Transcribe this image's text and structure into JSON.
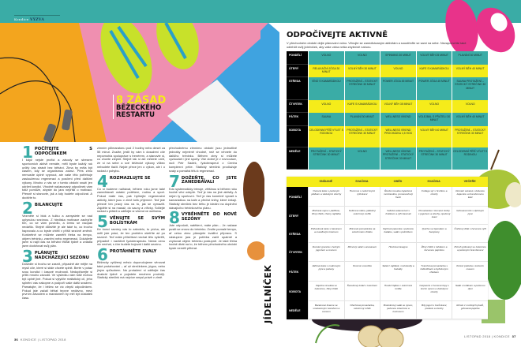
{
  "left_page": {
    "section_label": "Kondice",
    "section_title": "VÝZVA",
    "headline_highlight": "8 ZÁSAD",
    "headline_line2": "BĚŽECKÉHO",
    "headline_line3": "RESTARTU",
    "folio_number": "36",
    "folio_text": "KONDICE | LISTOPAD 2018",
    "articles": [
      {
        "num": "1",
        "title": "POČÍTEJTE S ODPOČINKEM",
        "body": "I když nejste profíci a závody se stresem sportovních aktivit nemáte, měli byste každý rok určitý čas strávit bez běhání. Zima by měla být časem, kdy se organismus zotaví. Přes zimu nemusíte úplně vypnout, ale vaše tělo potřebuje zaslouženou regeneraci a posílení před dalšími výkony. Mnoho z nás se v tomto období snaží jen udržet kondici. Vhodně načasovaný odpočinek vám totiž pomůže, abyste do jara nepřišli o motivaci. Přesně si stanovte, jak a kdy budete odpočívat. A dodržte to."
      },
      {
        "num": "2",
        "title": "BILANCUJTE",
        "body": "Vezměte si blok a tužku a zamyslete se nad uplynulou sezónou. Z hlediska motivace zachyťte tím, co se vám povedlo, a čemu se naopak nedařilo. Stejně důležité je ale také to, co trochu haprovalo a co byste chtěli v příští sezóně změnit. Konkrétně se můžete zaměřit třeba na tempo, objem tréninku, zranění nebo regeneraci. Dokážete jsem si najít čas na běhání třikrát týdně a zvládla jsem dodržovat svůj plán."
      },
      {
        "num": "3",
        "title": "PLÁNUJTE NADCHÁZEJÍCÍ SEZÓNU",
        "body": "Dosedte si trochu se zasnít, případně ale mějte na mysli cíle, které si stále chcete splnit. Berte v potaz svou kondici i časové možnosti. Nedopřávejte si příliš mnoho závodů. Ve výsledku vám totiž mohou být úplně jiné. Pokud si vytyčíte realistický cíl, jeho splnění vás nakopne a podpoří vaše další snažení. Pamatujte, že i běžec se víc zlepší odpočinkem. Pokud jste začali běhat teprve nedávno, mezi prvním závodem a maratonem by měl být dostatek času."
      },
      {
        "num": "4",
        "title": "ROZMAZLUJTE SE",
        "body": "Co si budeme nalhávat, během roku jsme také zanedbávali ostatní potěšení, rodinu a sport. Pokud máte čas, pak hýčkejte regenerační aktivity, které jsou v zimě tolik příjemné. Teď jste přesně ten pravý čas na to, jak se vymazlit. Zajděte si na masáž, do sauny a vířivky. Sdílejte radost s přáteli a udělejte si víkend ve wellness."
      },
      {
        "num": "5",
        "title": "VĚNUJTE SE SVÝM BOLÍSTKÁM",
        "body": "Ke konci sezóny vás to zabolelo, to pícha, ale měli jste práci, že ten problém ošetříte až po sezóně. Teď máte příležitost nechat tělo vyšetřit, případně i navštívit fyzioterapeuta. Nemá cenu nic nechat, s čím budete bojovat i další sezónu."
      },
      {
        "num": "6",
        "title": "PROTÁHNĚTE SVALY",
        "body": "Běžecky vytížený měsíc doporučujeme věnovat také protahování – ať už strečinkem, jógou, nebo jiným způsobem. Na protažení si udělejte čas dvakrát týdně a pojedete mnohem pružněji. Statický strečink má nejvíce smysl právě v zimě."
      },
      {
        "num": "7",
        "title": "DOŽEŇTE, CO JSTE ZANEDBÁVALI",
        "body": "Kdo systematicky trénuje, většinou si během roku hodně věcí odepře. Teď je čas na jiné aktivity. A nejen ty sportovní. Teď je čas konečně vyrazit s kamarádkou na kafe a přečíst knihy, které čekají. Statický strečink bez běhu je ideální na doplnění stávajícího tréninkového plánu."
      },
      {
        "num": "8",
        "title": "VYBĚHNĚTE DO NOVÉ SEZÓNY",
        "body": "Jste odpočatí, natěšení, máte plán... Je načase pustit se znovu do tréninku. Zvolte pomalé tempo, ať celou zimu plánujete kvalitní přípravu. S nástupem jara je potřeba začít opatrně a zvyšovat objem tréninku postupně. Je také třeba hodně dbát na to, že během přechodného období byste neměli přibírat."
      }
    ],
    "column2_intro": "zimním půlmaratonu pod 2 hodiny nebo deset za 55 minut. Zvažte, jestli by vám k dosažení cíle nepomohla spolupráce s trenérem, a stanovte si, co chcete zlepšit. Stejně tak si ale můžete určit, že si na sebe a své běžecké výkony vůbec nebudete tlačit. Nejde přece jen o výkon, ale i o radost z pohybu.",
    "column3_intro": "přechodnému zimnímu období jsou jednotlivé jednotky nejméně vhodné, než se vrhnete do dalšího tréninku. Během zimy si můžete vyzkoušet i jiné sporty. Vše dobré je v rovnováze, radí Petr Sadek, fyzioterapeut z Centra komplexní péče. Statický strečink prodlužuje svaly a pomáhá tělu k regeneraci."
  },
  "right_page": {
    "title": "ODPOČÍVEJTE AKTIVNĚ",
    "subtitle": "V přechodném období dejte plánování volno. Věnujte se zanedbávaným aktivitám a soustřeďte se sami na sebe. Nezapomeňte také odlehčit svůj jídelníček, aby vaše váha nešla zbytečně nahoru.",
    "activity_table": {
      "rows": [
        {
          "day": "PONDĚLÍ",
          "cells": [
            "VOLNO",
            "VOLNO",
            "SPINNING 30 MINUT",
            "VOLNÝ BĚH 25 MINUT",
            "PLAVÁNÍ 30 MINUT"
          ]
        },
        {
          "day": "ÚTERÝ",
          "cells": [
            "RELAXAČNÍ JÓGA 30 MINUT",
            "VOLNÝ BĚH 30 MINUT",
            "VOLNO",
            "KAFE S KAMARÁDKOU",
            "VOLNÝ BĚH 40 MINUT"
          ]
        },
        {
          "day": "STŘEDA",
          "cells": [
            "VÍNO S KAMARÁDKOU",
            "PROTAŽENÍ – STATICKÝ STREČINK 30 MINUT",
            "POWER JÓGA 45 MINUT",
            "POWER JÓGA 45 MINUT",
            "SAUNA PROTAŽENÍ – STATICKÝ STREČINK 30 MINUT"
          ]
        },
        {
          "day": "ČTVRTEK",
          "cells": [
            "VOLNO",
            "KAFE S KAMARÁDKOU",
            "VOLNÝ BĚH 35 MINUT",
            "VOLNO",
            "VOLNO"
          ]
        },
        {
          "day": "PÁTEK",
          "cells": [
            "SAUNA",
            "PLAVÁNÍ 30 MINUT",
            "WELLNESS VÍKEND",
            "VOLEJBAL S PŘÁTELI 30 MINUT",
            "VOLNÝ BĚH 40 MINUT"
          ]
        },
        {
          "day": "SOBOTA",
          "cells": [
            "CELODENNÍ PĚŠÍ VÝLET S RODINOU",
            "PROTAŽENÍ – STATICKÝ STREČINK 30 MINUT",
            "WELLNESS VÍKEND PROCHÁZKA 1,5 HOD",
            "VOLNÝ BĚH 40 MINUT",
            "PROTAŽENÍ – STATICKÝ STREČINK 30 MINUT"
          ]
        },
        {
          "day": "NEDĚLE",
          "cells": [
            "PROTAŽENÍ – STATICKÝ STREČINK 30 MINUT",
            "VOLNO",
            "WELLNESS VÍKEND PROTAŽENÍ – STATICKÝ STREČINK 30 MINUT",
            "PROTAŽENÍ – STATICKÝ STREČINK 30 MINUT",
            "CELODENNÍ PĚŠÍ VÝLET S RODINOU"
          ]
        }
      ]
    },
    "menu_label": "JÍDELNÍČEK",
    "menu_table": {
      "headers": [
        "SNÍDANĚ",
        "SVAČINA",
        "OBĚD",
        "SVAČINA",
        "VEČEŘE"
      ],
      "rows": [
        {
          "day": "PONDĚLÍ",
          "cells": [
            "Ovesná kaše s pečeným jablkem a vlašskými ořechy",
            "Hummus s celozrnnými tyčinkami",
            "Řecká musaka zapečená mozzarellou, pomerančový fresh",
            "Cottage sýr s hruškou a ořechy",
            "Domácí sekaná s dušenou kapustou a bramborovou kaší"
          ]
        },
        {
          "day": "ÚTERÝ",
          "cells": [
            "Míchaná vejce s pažitkou, žitný chléb, cherry rajčátka",
            "Kefírové mléko, jablečný celozrnný muffin",
            "Indická sekaná kari s hráškem a rýží basmati",
            "Pomazánka z červené čočky s jogurtem a ořechy, opečený toast",
            "Grilované tofu s dýňovým pyré"
          ]
        },
        {
          "day": "STŘEDA",
          "cells": [
            "Pohanková kaše s banánem a mandlovým krémem",
            "Mrkvová pomazánka na celozrnném chlebu",
            "Vepřová panenka s pečenou batátou, salát s polníčkem",
            "Quiche se špenátem a žampiony",
            "Čočkový dhál s červenou rýží"
          ]
        },
        {
          "day": "ČTVRTEK",
          "cells": [
            "Domácí granola s řeckým jogurtem a ovocem",
            "Mrkvový salát s ananasem",
            "Houbové lasagne",
            "Žitný chléb s tuňákem a červenou paprikou",
            "Pstruh grilovaný se zeleninou a pečenými bramborami"
          ]
        },
        {
          "day": "PÁTEK",
          "cells": [
            "Jáhlová kaše s malinovým pyré a pekany",
            "Ovocné smoothie",
            "Salát z rajčátek, mozzarelly a bazalky",
            "Tvarohová pomazánka s ředkvičkami a bylinkovým chlebem",
            "Kuřecí polévka s kuřecím masem"
          ]
        },
        {
          "day": "SOBOTA",
          "cells": [
            "Vaječná omeleta se zeleninou, žitný chléb",
            "Švestkový koláč s tvarohem",
            "Hovězí fajitas v celozrnné tortille",
            "Carpaccio z červené řepy s kozím sýrem a vlašskými ořechy",
            "Salát s tuňákem a pečenou dýní"
          ]
        },
        {
          "day": "NEDĚLE",
          "cells": [
            "Banánové lívance se smetanovým tvarohem a ovocem",
            "Ořechová pomazánka, celozrnný rohlík",
            "Brokolicový salát se sýrem, pečenou zeleninou a kuskusem",
            "Bílý jogurt s borůvkami, pistácie a ořechy",
            "Rizoto z mořských plodů, grilovaná paprika"
          ]
        }
      ]
    },
    "folio_text": "LISTOPAD 2018 | KONDICE",
    "folio_number": "37"
  },
  "colors": {
    "teal": "#3aaca6",
    "yellow": "#f5ec1a",
    "black": "#000000",
    "pink": "#e8338a"
  }
}
